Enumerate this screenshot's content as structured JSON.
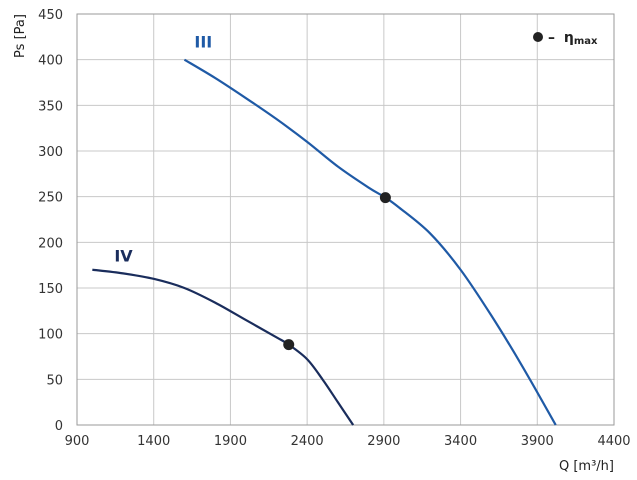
{
  "chart_data": {
    "type": "line",
    "xlabel": "Q [m³/h]",
    "ylabel": "Ps [Pa]",
    "xlim": [
      900,
      4400
    ],
    "ylim": [
      0,
      450
    ],
    "xticks": [
      900,
      1400,
      1900,
      2400,
      2900,
      3400,
      3900,
      4400
    ],
    "yticks": [
      0,
      50,
      100,
      150,
      200,
      250,
      300,
      350,
      400,
      450
    ],
    "grid": true,
    "legend": {
      "position": "top-right",
      "marker": "●",
      "dash": "–",
      "symbol": "η",
      "subscript": "max"
    },
    "series": [
      {
        "name": "III",
        "color": "#1f5aa6",
        "x": [
          1600,
          1800,
          2000,
          2200,
          2400,
          2600,
          2800,
          2910,
          3000,
          3200,
          3400,
          3600,
          3800,
          4020
        ],
        "y": [
          400,
          380,
          358,
          335,
          310,
          283,
          260,
          249,
          238,
          210,
          170,
          120,
          65,
          0
        ],
        "eta_max": {
          "x": 2910,
          "y": 249
        }
      },
      {
        "name": "IV",
        "color": "#1a2d5c",
        "x": [
          1000,
          1200,
          1400,
          1600,
          1800,
          2000,
          2200,
          2280,
          2400,
          2500,
          2600,
          2700
        ],
        "y": [
          170,
          166,
          160,
          150,
          134,
          115,
          96,
          88,
          72,
          50,
          25,
          0
        ],
        "eta_max": {
          "x": 2280,
          "y": 88
        }
      }
    ]
  }
}
